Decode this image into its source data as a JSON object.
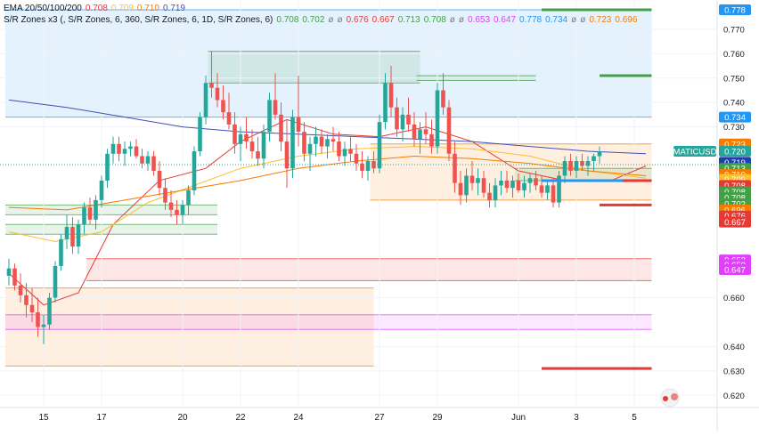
{
  "legend": {
    "ema": {
      "label": "EMA 20/50/100/200",
      "values": [
        {
          "text": "0.708",
          "color": "#e53935"
        },
        {
          "text": "0.709",
          "color": "#fbc02d"
        },
        {
          "text": "0.710",
          "color": "#f57c00"
        },
        {
          "text": "0.719",
          "color": "#3f51b5"
        }
      ]
    },
    "sr": {
      "label": "S/R Zones x3 (, S/R Zones, 6, 360, S/R Zones, 6, 1D, S/R Zones, 6)",
      "values": [
        {
          "text": "0.708",
          "color": "#43a047"
        },
        {
          "text": "0.702",
          "color": "#43a047"
        },
        {
          "text": "ø",
          "color": "#787b86"
        },
        {
          "text": "ø",
          "color": "#787b86"
        },
        {
          "text": "0.676",
          "color": "#e53935"
        },
        {
          "text": "0.667",
          "color": "#e53935"
        },
        {
          "text": "0.713",
          "color": "#43a047"
        },
        {
          "text": "0.708",
          "color": "#43a047"
        },
        {
          "text": "ø",
          "color": "#787b86"
        },
        {
          "text": "ø",
          "color": "#787b86"
        },
        {
          "text": "0.653",
          "color": "#e040fb"
        },
        {
          "text": "0.647",
          "color": "#e040fb"
        },
        {
          "text": "0.778",
          "color": "#2196f3"
        },
        {
          "text": "0.734",
          "color": "#2196f3"
        },
        {
          "text": "ø",
          "color": "#787b86"
        },
        {
          "text": "ø",
          "color": "#787b86"
        },
        {
          "text": "0.723",
          "color": "#f57c00"
        },
        {
          "text": "0.696",
          "color": "#f57c00"
        }
      ]
    }
  },
  "chart_data": {
    "type": "candlestick",
    "symbol": "MATICUSD",
    "ylim": [
      0.615,
      0.782
    ],
    "y_ticks": [
      0.62,
      0.63,
      0.64,
      0.66,
      0.73,
      0.74,
      0.75,
      0.76,
      0.77
    ],
    "x_tick_labels": [
      {
        "label": "15",
        "bar": 6
      },
      {
        "label": "17",
        "bar": 16
      },
      {
        "label": "20",
        "bar": 30
      },
      {
        "label": "22",
        "bar": 40
      },
      {
        "label": "24",
        "bar": 50
      },
      {
        "label": "27",
        "bar": 64
      },
      {
        "label": "29",
        "bar": 74
      },
      {
        "label": "Jun",
        "bar": 88
      },
      {
        "label": "3",
        "bar": 98
      },
      {
        "label": "5",
        "bar": 108
      }
    ],
    "price_labels": [
      {
        "value": "0.778",
        "price": 0.778,
        "color": "#2196f3"
      },
      {
        "value": "0.734",
        "price": 0.734,
        "color": "#2196f3"
      },
      {
        "value": "0.723",
        "price": 0.723,
        "color": "#f57c00"
      },
      {
        "value": "MATICUSD",
        "price": 0.72,
        "color": "#26a69a"
      },
      {
        "value": "0.720",
        "price": 0.72,
        "color": "#26a69a"
      },
      {
        "value": "0.719",
        "price": 0.7155,
        "color": "#1e40af"
      },
      {
        "value": "0.713",
        "price": 0.713,
        "color": "#43a047"
      },
      {
        "value": "0.710",
        "price": 0.7105,
        "color": "#f57c00"
      },
      {
        "value": "0.709",
        "price": 0.7085,
        "color": "#fbc02d"
      },
      {
        "value": "0.708",
        "price": 0.706,
        "color": "#e53935"
      },
      {
        "value": "0.708",
        "price": 0.7035,
        "color": "#43a047"
      },
      {
        "value": "0.708",
        "price": 0.701,
        "color": "#43a047"
      },
      {
        "value": "0.702",
        "price": 0.6985,
        "color": "#43a047"
      },
      {
        "value": "0.696",
        "price": 0.696,
        "color": "#f57c00"
      },
      {
        "value": "0.676",
        "price": 0.6935,
        "color": "#e53935"
      },
      {
        "value": "0.667",
        "price": 0.691,
        "color": "#e53935"
      },
      {
        "value": "0.653",
        "price": 0.6755,
        "color": "#e040fb"
      },
      {
        "value": "0.650",
        "price": 0.6735,
        "color": "#e040fb"
      },
      {
        "value": "0.647",
        "price": 0.6715,
        "color": "#e040fb"
      }
    ],
    "zones": [
      {
        "top": 0.778,
        "bottom": 0.734,
        "color": "#2196f3",
        "from_bar": 0,
        "to_bar": 111
      },
      {
        "top": 0.761,
        "bottom": 0.748,
        "color": "#43a047",
        "from_bar": 35,
        "to_bar": 71
      },
      {
        "top": 0.751,
        "bottom": 0.749,
        "color": "#43a047",
        "from_bar": 71,
        "to_bar": 91
      },
      {
        "top": 0.723,
        "bottom": 0.7,
        "color": "#f57c00",
        "from_bar": 63,
        "to_bar": 111
      },
      {
        "top": 0.713,
        "bottom": 0.708,
        "color": "#43a047",
        "from_bar": 88,
        "to_bar": 111
      },
      {
        "top": 0.698,
        "bottom": 0.694,
        "color": "#43a047",
        "from_bar": 0,
        "to_bar": 36
      },
      {
        "top": 0.69,
        "bottom": 0.686,
        "color": "#43a047",
        "from_bar": 0,
        "to_bar": 36
      },
      {
        "top": 0.676,
        "bottom": 0.667,
        "color": "#e53935",
        "from_bar": 14,
        "to_bar": 111
      },
      {
        "top": 0.664,
        "bottom": 0.632,
        "color": "#f57c00",
        "from_bar": 0,
        "to_bar": 63
      },
      {
        "top": 0.653,
        "bottom": 0.647,
        "color": "#e040fb",
        "from_bar": 0,
        "to_bar": 111
      }
    ],
    "segments": [
      {
        "price": 0.778,
        "from_bar": 92,
        "to_bar": 111,
        "color": "#43a047"
      },
      {
        "price": 0.751,
        "from_bar": 102,
        "to_bar": 111,
        "color": "#43a047"
      },
      {
        "price": 0.708,
        "from_bar": 92,
        "to_bar": 111,
        "color": "#2196f3"
      },
      {
        "price": 0.708,
        "from_bar": 106,
        "to_bar": 111,
        "color": "#e53935"
      },
      {
        "price": 0.698,
        "from_bar": 102,
        "to_bar": 111,
        "color": "#e53935"
      },
      {
        "price": 0.631,
        "from_bar": 92,
        "to_bar": 111,
        "color": "#e53935"
      }
    ],
    "ema": [
      {
        "name": "EMA 20",
        "color": "#e53935",
        "points": [
          [
            0,
            0.67
          ],
          [
            6,
            0.657
          ],
          [
            12,
            0.662
          ],
          [
            18,
            0.69
          ],
          [
            26,
            0.708
          ],
          [
            34,
            0.713
          ],
          [
            40,
            0.724
          ],
          [
            48,
            0.733
          ],
          [
            56,
            0.727
          ],
          [
            64,
            0.726
          ],
          [
            72,
            0.73
          ],
          [
            80,
            0.724
          ],
          [
            88,
            0.712
          ],
          [
            96,
            0.708
          ],
          [
            104,
            0.708
          ],
          [
            110,
            0.714
          ]
        ]
      },
      {
        "name": "EMA 50",
        "color": "#fbc02d",
        "points": [
          [
            0,
            0.687
          ],
          [
            8,
            0.683
          ],
          [
            16,
            0.687
          ],
          [
            24,
            0.699
          ],
          [
            32,
            0.706
          ],
          [
            40,
            0.713
          ],
          [
            50,
            0.718
          ],
          [
            60,
            0.721
          ],
          [
            70,
            0.722
          ],
          [
            80,
            0.721
          ],
          [
            90,
            0.718
          ],
          [
            100,
            0.712
          ],
          [
            110,
            0.709
          ]
        ]
      },
      {
        "name": "EMA 100",
        "color": "#f57c00",
        "points": [
          [
            0,
            0.697
          ],
          [
            10,
            0.696
          ],
          [
            20,
            0.7
          ],
          [
            30,
            0.704
          ],
          [
            40,
            0.708
          ],
          [
            50,
            0.713
          ],
          [
            60,
            0.716
          ],
          [
            70,
            0.718
          ],
          [
            80,
            0.717
          ],
          [
            90,
            0.715
          ],
          [
            100,
            0.712
          ],
          [
            110,
            0.71
          ]
        ]
      },
      {
        "name": "EMA 200",
        "color": "#3f51b5",
        "points": [
          [
            0,
            0.741
          ],
          [
            10,
            0.738
          ],
          [
            20,
            0.734
          ],
          [
            30,
            0.73
          ],
          [
            40,
            0.728
          ],
          [
            50,
            0.727
          ],
          [
            60,
            0.726
          ],
          [
            70,
            0.725
          ],
          [
            80,
            0.724
          ],
          [
            90,
            0.722
          ],
          [
            100,
            0.72
          ],
          [
            110,
            0.719
          ]
        ]
      }
    ],
    "candles": [
      [
        0.669,
        0.676,
        0.665,
        0.672
      ],
      [
        0.672,
        0.674,
        0.663,
        0.665
      ],
      [
        0.665,
        0.67,
        0.658,
        0.661
      ],
      [
        0.661,
        0.666,
        0.652,
        0.657
      ],
      [
        0.657,
        0.664,
        0.65,
        0.654
      ],
      [
        0.654,
        0.66,
        0.644,
        0.648
      ],
      [
        0.648,
        0.653,
        0.641,
        0.649
      ],
      [
        0.649,
        0.662,
        0.647,
        0.66
      ],
      [
        0.66,
        0.675,
        0.658,
        0.673
      ],
      [
        0.673,
        0.686,
        0.671,
        0.684
      ],
      [
        0.684,
        0.694,
        0.68,
        0.689
      ],
      [
        0.689,
        0.693,
        0.678,
        0.681
      ],
      [
        0.681,
        0.692,
        0.678,
        0.69
      ],
      [
        0.69,
        0.699,
        0.686,
        0.697
      ],
      [
        0.697,
        0.701,
        0.69,
        0.692
      ],
      [
        0.692,
        0.702,
        0.688,
        0.7
      ],
      [
        0.7,
        0.71,
        0.697,
        0.708
      ],
      [
        0.708,
        0.721,
        0.705,
        0.719
      ],
      [
        0.719,
        0.726,
        0.715,
        0.723
      ],
      [
        0.723,
        0.726,
        0.716,
        0.719
      ],
      [
        0.719,
        0.724,
        0.714,
        0.721
      ],
      [
        0.721,
        0.724,
        0.718,
        0.722
      ],
      [
        0.722,
        0.725,
        0.717,
        0.718
      ],
      [
        0.718,
        0.721,
        0.713,
        0.715
      ],
      [
        0.715,
        0.72,
        0.712,
        0.718
      ],
      [
        0.718,
        0.72,
        0.71,
        0.712
      ],
      [
        0.712,
        0.716,
        0.702,
        0.705
      ],
      [
        0.705,
        0.709,
        0.696,
        0.699
      ],
      [
        0.699,
        0.704,
        0.693,
        0.696
      ],
      [
        0.696,
        0.7,
        0.69,
        0.694
      ],
      [
        0.694,
        0.7,
        0.69,
        0.698
      ],
      [
        0.698,
        0.706,
        0.694,
        0.704
      ],
      [
        0.704,
        0.722,
        0.702,
        0.72
      ],
      [
        0.72,
        0.736,
        0.718,
        0.734
      ],
      [
        0.734,
        0.751,
        0.731,
        0.748
      ],
      [
        0.748,
        0.761,
        0.742,
        0.746
      ],
      [
        0.746,
        0.752,
        0.738,
        0.741
      ],
      [
        0.741,
        0.747,
        0.733,
        0.736
      ],
      [
        0.736,
        0.744,
        0.729,
        0.731
      ],
      [
        0.731,
        0.736,
        0.719,
        0.723
      ],
      [
        0.723,
        0.73,
        0.716,
        0.727
      ],
      [
        0.727,
        0.734,
        0.721,
        0.724
      ],
      [
        0.724,
        0.729,
        0.717,
        0.72
      ],
      [
        0.72,
        0.726,
        0.714,
        0.717
      ],
      [
        0.717,
        0.731,
        0.713,
        0.728
      ],
      [
        0.728,
        0.744,
        0.724,
        0.741
      ],
      [
        0.741,
        0.752,
        0.733,
        0.735
      ],
      [
        0.735,
        0.74,
        0.72,
        0.724
      ],
      [
        0.724,
        0.733,
        0.705,
        0.713
      ],
      [
        0.713,
        0.737,
        0.709,
        0.734
      ],
      [
        0.734,
        0.751,
        0.722,
        0.728
      ],
      [
        0.728,
        0.732,
        0.716,
        0.719
      ],
      [
        0.719,
        0.726,
        0.712,
        0.723
      ],
      [
        0.723,
        0.73,
        0.718,
        0.726
      ],
      [
        0.726,
        0.729,
        0.719,
        0.722
      ],
      [
        0.722,
        0.727,
        0.717,
        0.725
      ],
      [
        0.725,
        0.73,
        0.72,
        0.724
      ],
      [
        0.724,
        0.728,
        0.716,
        0.718
      ],
      [
        0.718,
        0.724,
        0.714,
        0.721
      ],
      [
        0.721,
        0.726,
        0.716,
        0.719
      ],
      [
        0.719,
        0.723,
        0.712,
        0.715
      ],
      [
        0.715,
        0.72,
        0.709,
        0.712
      ],
      [
        0.712,
        0.718,
        0.708,
        0.716
      ],
      [
        0.716,
        0.72,
        0.711,
        0.713
      ],
      [
        0.713,
        0.735,
        0.711,
        0.732
      ],
      [
        0.732,
        0.752,
        0.729,
        0.748
      ],
      [
        0.748,
        0.755,
        0.734,
        0.738
      ],
      [
        0.738,
        0.742,
        0.726,
        0.729
      ],
      [
        0.729,
        0.738,
        0.724,
        0.735
      ],
      [
        0.735,
        0.742,
        0.728,
        0.731
      ],
      [
        0.731,
        0.736,
        0.722,
        0.725
      ],
      [
        0.725,
        0.732,
        0.719,
        0.729
      ],
      [
        0.729,
        0.736,
        0.723,
        0.727
      ],
      [
        0.727,
        0.733,
        0.719,
        0.722
      ],
      [
        0.722,
        0.748,
        0.719,
        0.745
      ],
      [
        0.745,
        0.752,
        0.735,
        0.738
      ],
      [
        0.738,
        0.741,
        0.716,
        0.719
      ],
      [
        0.719,
        0.724,
        0.703,
        0.707
      ],
      [
        0.707,
        0.712,
        0.698,
        0.702
      ],
      [
        0.702,
        0.713,
        0.699,
        0.71
      ],
      [
        0.71,
        0.716,
        0.704,
        0.707
      ],
      [
        0.707,
        0.713,
        0.702,
        0.709
      ],
      [
        0.709,
        0.712,
        0.701,
        0.703
      ],
      [
        0.703,
        0.707,
        0.697,
        0.7
      ],
      [
        0.7,
        0.709,
        0.697,
        0.706
      ],
      [
        0.706,
        0.712,
        0.702,
        0.708
      ],
      [
        0.708,
        0.712,
        0.703,
        0.705
      ],
      [
        0.705,
        0.71,
        0.701,
        0.708
      ],
      [
        0.708,
        0.711,
        0.703,
        0.704
      ],
      [
        0.704,
        0.71,
        0.701,
        0.707
      ],
      [
        0.707,
        0.711,
        0.703,
        0.709
      ],
      [
        0.709,
        0.712,
        0.704,
        0.706
      ],
      [
        0.706,
        0.71,
        0.701,
        0.703
      ],
      [
        0.703,
        0.708,
        0.7,
        0.706
      ],
      [
        0.706,
        0.709,
        0.697,
        0.699
      ],
      [
        0.699,
        0.712,
        0.697,
        0.71
      ],
      [
        0.71,
        0.718,
        0.707,
        0.716
      ],
      [
        0.716,
        0.719,
        0.71,
        0.712
      ],
      [
        0.712,
        0.718,
        0.709,
        0.716
      ],
      [
        0.716,
        0.719,
        0.712,
        0.714
      ],
      [
        0.714,
        0.718,
        0.71,
        0.716
      ],
      [
        0.716,
        0.719,
        0.712,
        0.718
      ],
      [
        0.718,
        0.722,
        0.715,
        0.72
      ]
    ]
  }
}
